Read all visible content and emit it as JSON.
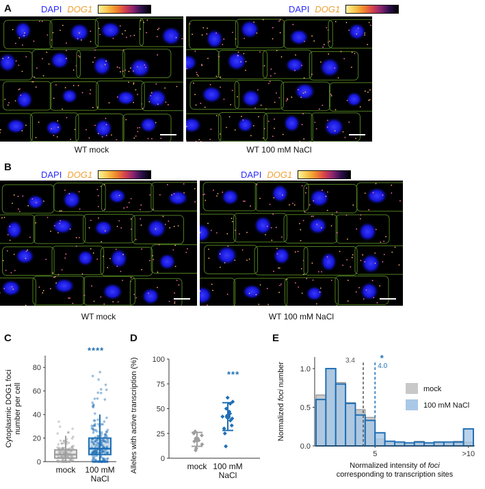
{
  "panels": {
    "a": {
      "label": "A",
      "left_caption": "WT mock",
      "right_caption": "WT 100 mM NaCl"
    },
    "b": {
      "label": "B",
      "left_caption": "WT mock",
      "right_caption": "WT 100 mM NaCl"
    },
    "c": {
      "label": "C"
    },
    "d": {
      "label": "D"
    },
    "e": {
      "label": "E"
    }
  },
  "legend": {
    "dapi": "DAPI",
    "gene": "DOG1"
  },
  "colors": {
    "dapi": "#2a2aff",
    "gene": "#f0a030",
    "cell_outline": "#4f7f1f",
    "mock": "#9e9e9e",
    "nacl": "#1f6fb5",
    "nacl_fill": "#a9c8e6"
  },
  "chart_data": [
    {
      "type": "scatter",
      "title": "",
      "ylabel": "Cytoplasmic DOG1 foci number per cell",
      "ylabel_lines": [
        "Cytoplasmic DOG1 foci",
        "number per cell"
      ],
      "categories": [
        "mock",
        "100 mM NaCl"
      ],
      "category_lines": [
        [
          "mock"
        ],
        [
          "100 mM",
          "NaCl"
        ]
      ],
      "ylim": [
        0,
        90
      ],
      "yticks": [
        0,
        20,
        40,
        60,
        80
      ],
      "series": [
        {
          "name": "mock",
          "box": {
            "min": 0,
            "q1": 3,
            "median": 6,
            "q3": 10,
            "max": 22
          }
        },
        {
          "name": "100 mM NaCl",
          "box": {
            "min": 0,
            "q1": 6,
            "median": 11,
            "q3": 20,
            "max": 40
          }
        }
      ],
      "annotation": "****"
    },
    {
      "type": "scatter",
      "ylabel": "Alleles with active transcription (%)",
      "categories": [
        "mock",
        "100 mM NaCl"
      ],
      "category_lines": [
        [
          "mock"
        ],
        [
          "100 mM",
          "NaCl"
        ]
      ],
      "ylim": [
        0,
        100
      ],
      "yticks": [
        0,
        25,
        50,
        75,
        100
      ],
      "series": [
        {
          "name": "mock",
          "points": [
            27,
            25,
            23,
            20,
            18,
            17,
            14,
            10,
            8
          ],
          "mean": 19,
          "sd": 7
        },
        {
          "name": "100 mM NaCl",
          "points": [
            61,
            57,
            55,
            50,
            47,
            45,
            42,
            40,
            38,
            33,
            30,
            25,
            12
          ],
          "mean": 42,
          "sd": 14
        }
      ],
      "annotation": "***"
    },
    {
      "type": "bar",
      "xlabel": "Normalized intensity of foci corresponding to transcription sites",
      "xlabel_lines": [
        "Normalized intensity of foci",
        "corresponding to transcription sites"
      ],
      "ylabel": "Normalized foci number",
      "ylim": [
        0,
        1.15
      ],
      "yticks": [
        0.0,
        0.5,
        1.0
      ],
      "xticks": [
        "5",
        ">10"
      ],
      "series": [
        {
          "name": "mock",
          "values": [
            0.66,
            0.98,
            0.82,
            0.56,
            0.47,
            0.37,
            0.09,
            0.06,
            0.05,
            0.04,
            0.06,
            0.04,
            0.04,
            0.05,
            0.06,
            0.05
          ]
        },
        {
          "name": "100 mM NaCl",
          "values": [
            0.6,
            1.0,
            0.8,
            0.55,
            0.4,
            0.33,
            0.17,
            0.06,
            0.05,
            0.04,
            0.05,
            0.04,
            0.05,
            0.05,
            0.05,
            0.22
          ]
        }
      ],
      "vlines": [
        {
          "series": "mock",
          "value": 3.4,
          "label": "3.4"
        },
        {
          "series": "100 mM NaCl",
          "value": 4.0,
          "label": "4.0"
        }
      ],
      "annotation": "*",
      "legend_position": "right"
    }
  ]
}
